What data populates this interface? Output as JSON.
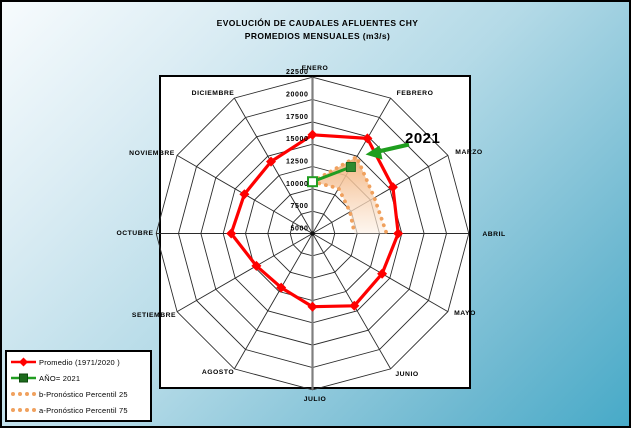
{
  "chart_data": {
    "type": "radar",
    "title": "EVOLUCIÓN DE CAUDALES AFLUENTES CHY",
    "subtitle": "PROMEDIOS MENSUALES (m3/s)",
    "categories": [
      "ENERO",
      "FEBRERO",
      "MARZO",
      "ABRIL",
      "MAYO",
      "JUNIO",
      "JULIO",
      "AGOSTO",
      "SETIEMBRE",
      "OCTUBRE",
      "NOVIEMBRE",
      "DICIEMBRE"
    ],
    "axis": {
      "min": 5000,
      "max": 22500,
      "step": 2500,
      "tick_labels": [
        "22500",
        "20000",
        "17500",
        "15000",
        "12500",
        "10000",
        "7500",
        "5000"
      ]
    },
    "series": [
      {
        "name": "Promedio (1971/2020 )",
        "type": "line",
        "marker": "diamond",
        "color": "#fe0000",
        "values": [
          16050,
          17300,
          15400,
          14600,
          14000,
          14350,
          13200,
          12000,
          12250,
          14100,
          13800,
          14300
        ]
      },
      {
        "name": "AÑO= 2021",
        "type": "line",
        "marker": "square",
        "color": "#219d21",
        "values": [
          10800,
          13600,
          null,
          null,
          null,
          null,
          null,
          null,
          null,
          null,
          null,
          null
        ]
      },
      {
        "name": "b-Pronóstico Percentil 25",
        "type": "dotted",
        "color": "#f0a15e",
        "values": [
          10800,
          10850,
          9850,
          9700,
          null,
          null,
          null,
          null,
          null,
          null,
          null,
          null
        ]
      },
      {
        "name": "a-Pronóstico Percentil 75",
        "type": "dotted",
        "color": "#f0a15e",
        "values": [
          10800,
          14900,
          13000,
          13300,
          null,
          null,
          null,
          null,
          null,
          null,
          null,
          null
        ]
      }
    ],
    "band_fill": {
      "between": [
        "a-Pronóstico Percentil 75",
        "b-Pronóstico Percentil 25"
      ],
      "color_top": "#f2b078",
      "color_bottom": "#fdf1e6"
    },
    "annotation": "2021",
    "legend_position": "bottom-left",
    "grid": true
  }
}
